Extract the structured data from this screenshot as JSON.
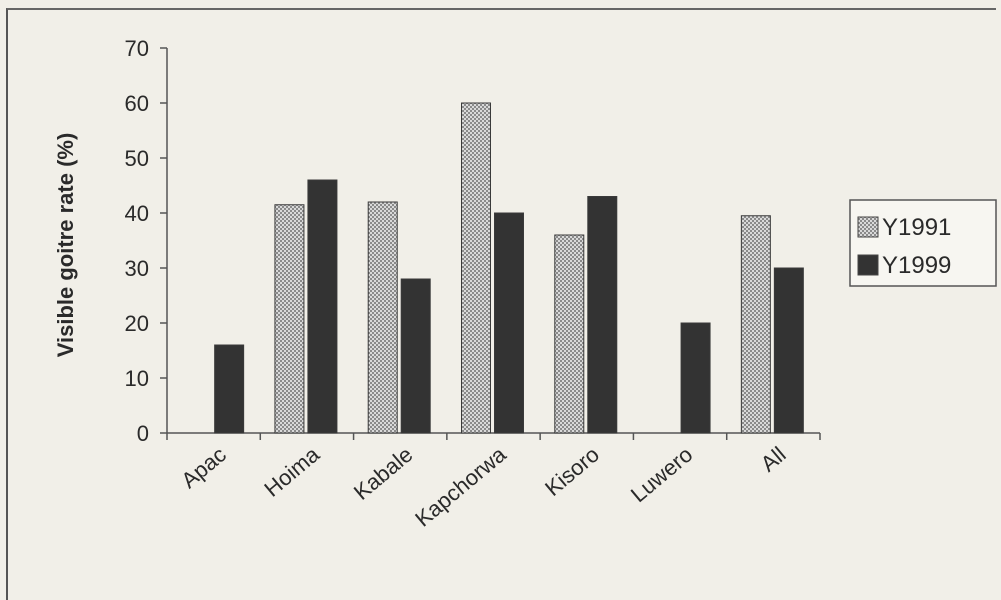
{
  "chart_data": {
    "type": "bar",
    "title": "",
    "xlabel": "",
    "ylabel": "Visible goitre rate (%)",
    "ylim": [
      0,
      70
    ],
    "yticks": [
      0,
      10,
      20,
      30,
      40,
      50,
      60,
      70
    ],
    "grid": false,
    "legend_position": "right",
    "categories": [
      "Apac",
      "Hoima",
      "Kabale",
      "Kapchorwa",
      "Kisoro",
      "Luwero",
      "All"
    ],
    "series": [
      {
        "name": "Y1991",
        "values": [
          null,
          41.5,
          42,
          60,
          36,
          null,
          39.5
        ],
        "color": "#bdbdbd"
      },
      {
        "name": "Y1999",
        "values": [
          16,
          46,
          28,
          40,
          43,
          20,
          30
        ],
        "color": "#333333"
      }
    ]
  }
}
